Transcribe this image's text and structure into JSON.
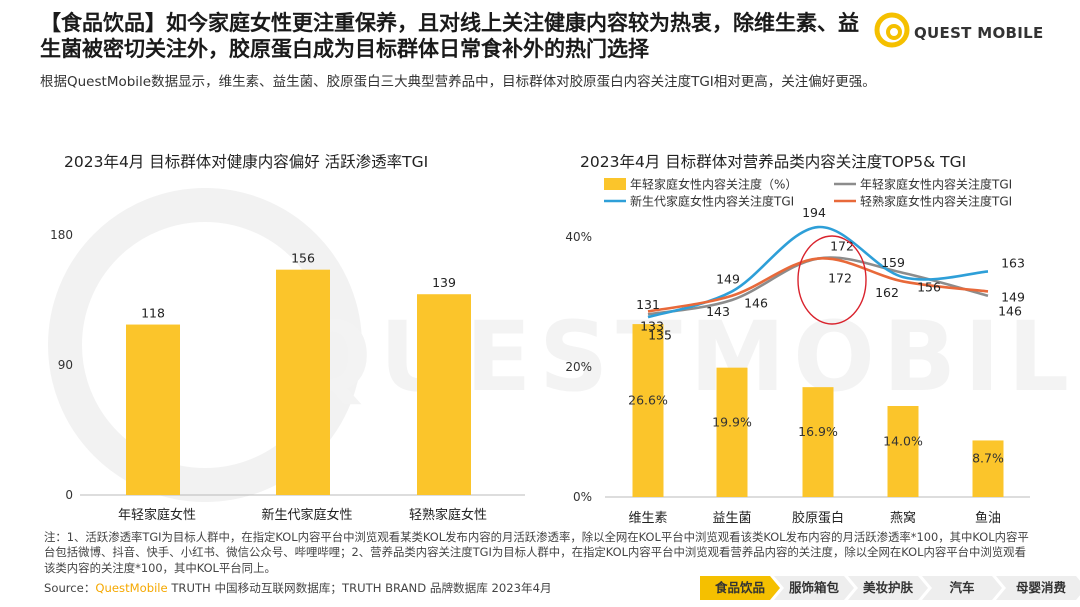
{
  "header": {
    "title": "【食品饮品】如今家庭女性更注重保养，且对线上关注健康内容较为热衷，除维生素、益生菌被密切关注外，胶原蛋白成为目标群体日常食补外的热门选择",
    "subtitle": "根据QuestMobile数据显示，维生素、益生菌、胶原蛋白三大典型营养品中，目标群体对胶原蛋白内容关注度TGI相对更高，关注偏好更强。",
    "logo_text": "QUEST MOBILE",
    "watermark": "QUESTMOBILE"
  },
  "colors": {
    "accent": "#f5c000",
    "bar": "#fbc52b",
    "line_young": "#8c8c8c",
    "line_new": "#2e9fd8",
    "line_mature": "#e8693a",
    "highlight": "#d9232d",
    "tab_active": "#f5c000",
    "tab_inactive": "#eeeeee"
  },
  "chart_data": [
    {
      "type": "bar",
      "title": "2023年4月 目标群体对健康内容偏好 活跃渗透率TGI",
      "categories": [
        "年轻家庭女性",
        "新生代家庭女性",
        "轻熟家庭女性"
      ],
      "values": [
        118,
        156,
        139
      ],
      "yticks": [
        "0",
        "90",
        "180"
      ],
      "ylim": [
        0,
        180
      ],
      "grid": false
    },
    {
      "type": "bar+line",
      "title": "2023年4月 目标群体对营养品类内容关注度TOP5& TGI",
      "categories": [
        "维生素",
        "益生菌",
        "胶原蛋白",
        "燕窝",
        "鱼油"
      ],
      "bars": {
        "name": "年轻家庭女性内容关注度（%）",
        "values": [
          26.6,
          19.9,
          16.9,
          14.0,
          8.7
        ],
        "labels": [
          "26.6%",
          "19.9%",
          "16.9%",
          "14.0%",
          "8.7%"
        ]
      },
      "yticks": [
        "0%",
        "20%",
        "40%"
      ],
      "ylim": [
        0,
        40
      ],
      "series": [
        {
          "name": "年轻家庭女性内容关注度TGI",
          "values": [
            133,
            143,
            172,
            162,
            146
          ]
        },
        {
          "name": "新生代家庭女性内容关注度TGI",
          "values": [
            131,
            149,
            194,
            159,
            163
          ]
        },
        {
          "name": "轻熟家庭女性内容关注度TGI",
          "values": [
            135,
            146,
            172,
            156,
            149
          ]
        }
      ],
      "legend_position": "top",
      "highlight": "胶原蛋白"
    }
  ],
  "notes": {
    "text": "注：1、活跃渗透率TGI为目标人群中，在指定KOL内容平台中浏览观看某类KOL发布内容的月活跃渗透率，除以全网在KOL平台中浏览观看该类KOL发布内容的月活跃渗透率*100，其中KOL内容平台包括微博、抖音、快手、小红书、微信公众号、哔哩哔哩；2、营养品类内容关注度TGI为目标人群中，在指定KOL内容平台中浏览观看营养品内容的关注度，除以全网在KOL内容平台中浏览观看该类内容的关注度*100，其中KOL平台同上。",
    "source_prefix": "Source：",
    "source_brand": "QuestMobile",
    "source_rest": " TRUTH 中国移动互联网数据库；TRUTH BRAND 品牌数据库 2023年4月"
  },
  "tabs": [
    "食品饮品",
    "服饰箱包",
    "美妆护肤",
    "汽车",
    "母婴消费"
  ]
}
